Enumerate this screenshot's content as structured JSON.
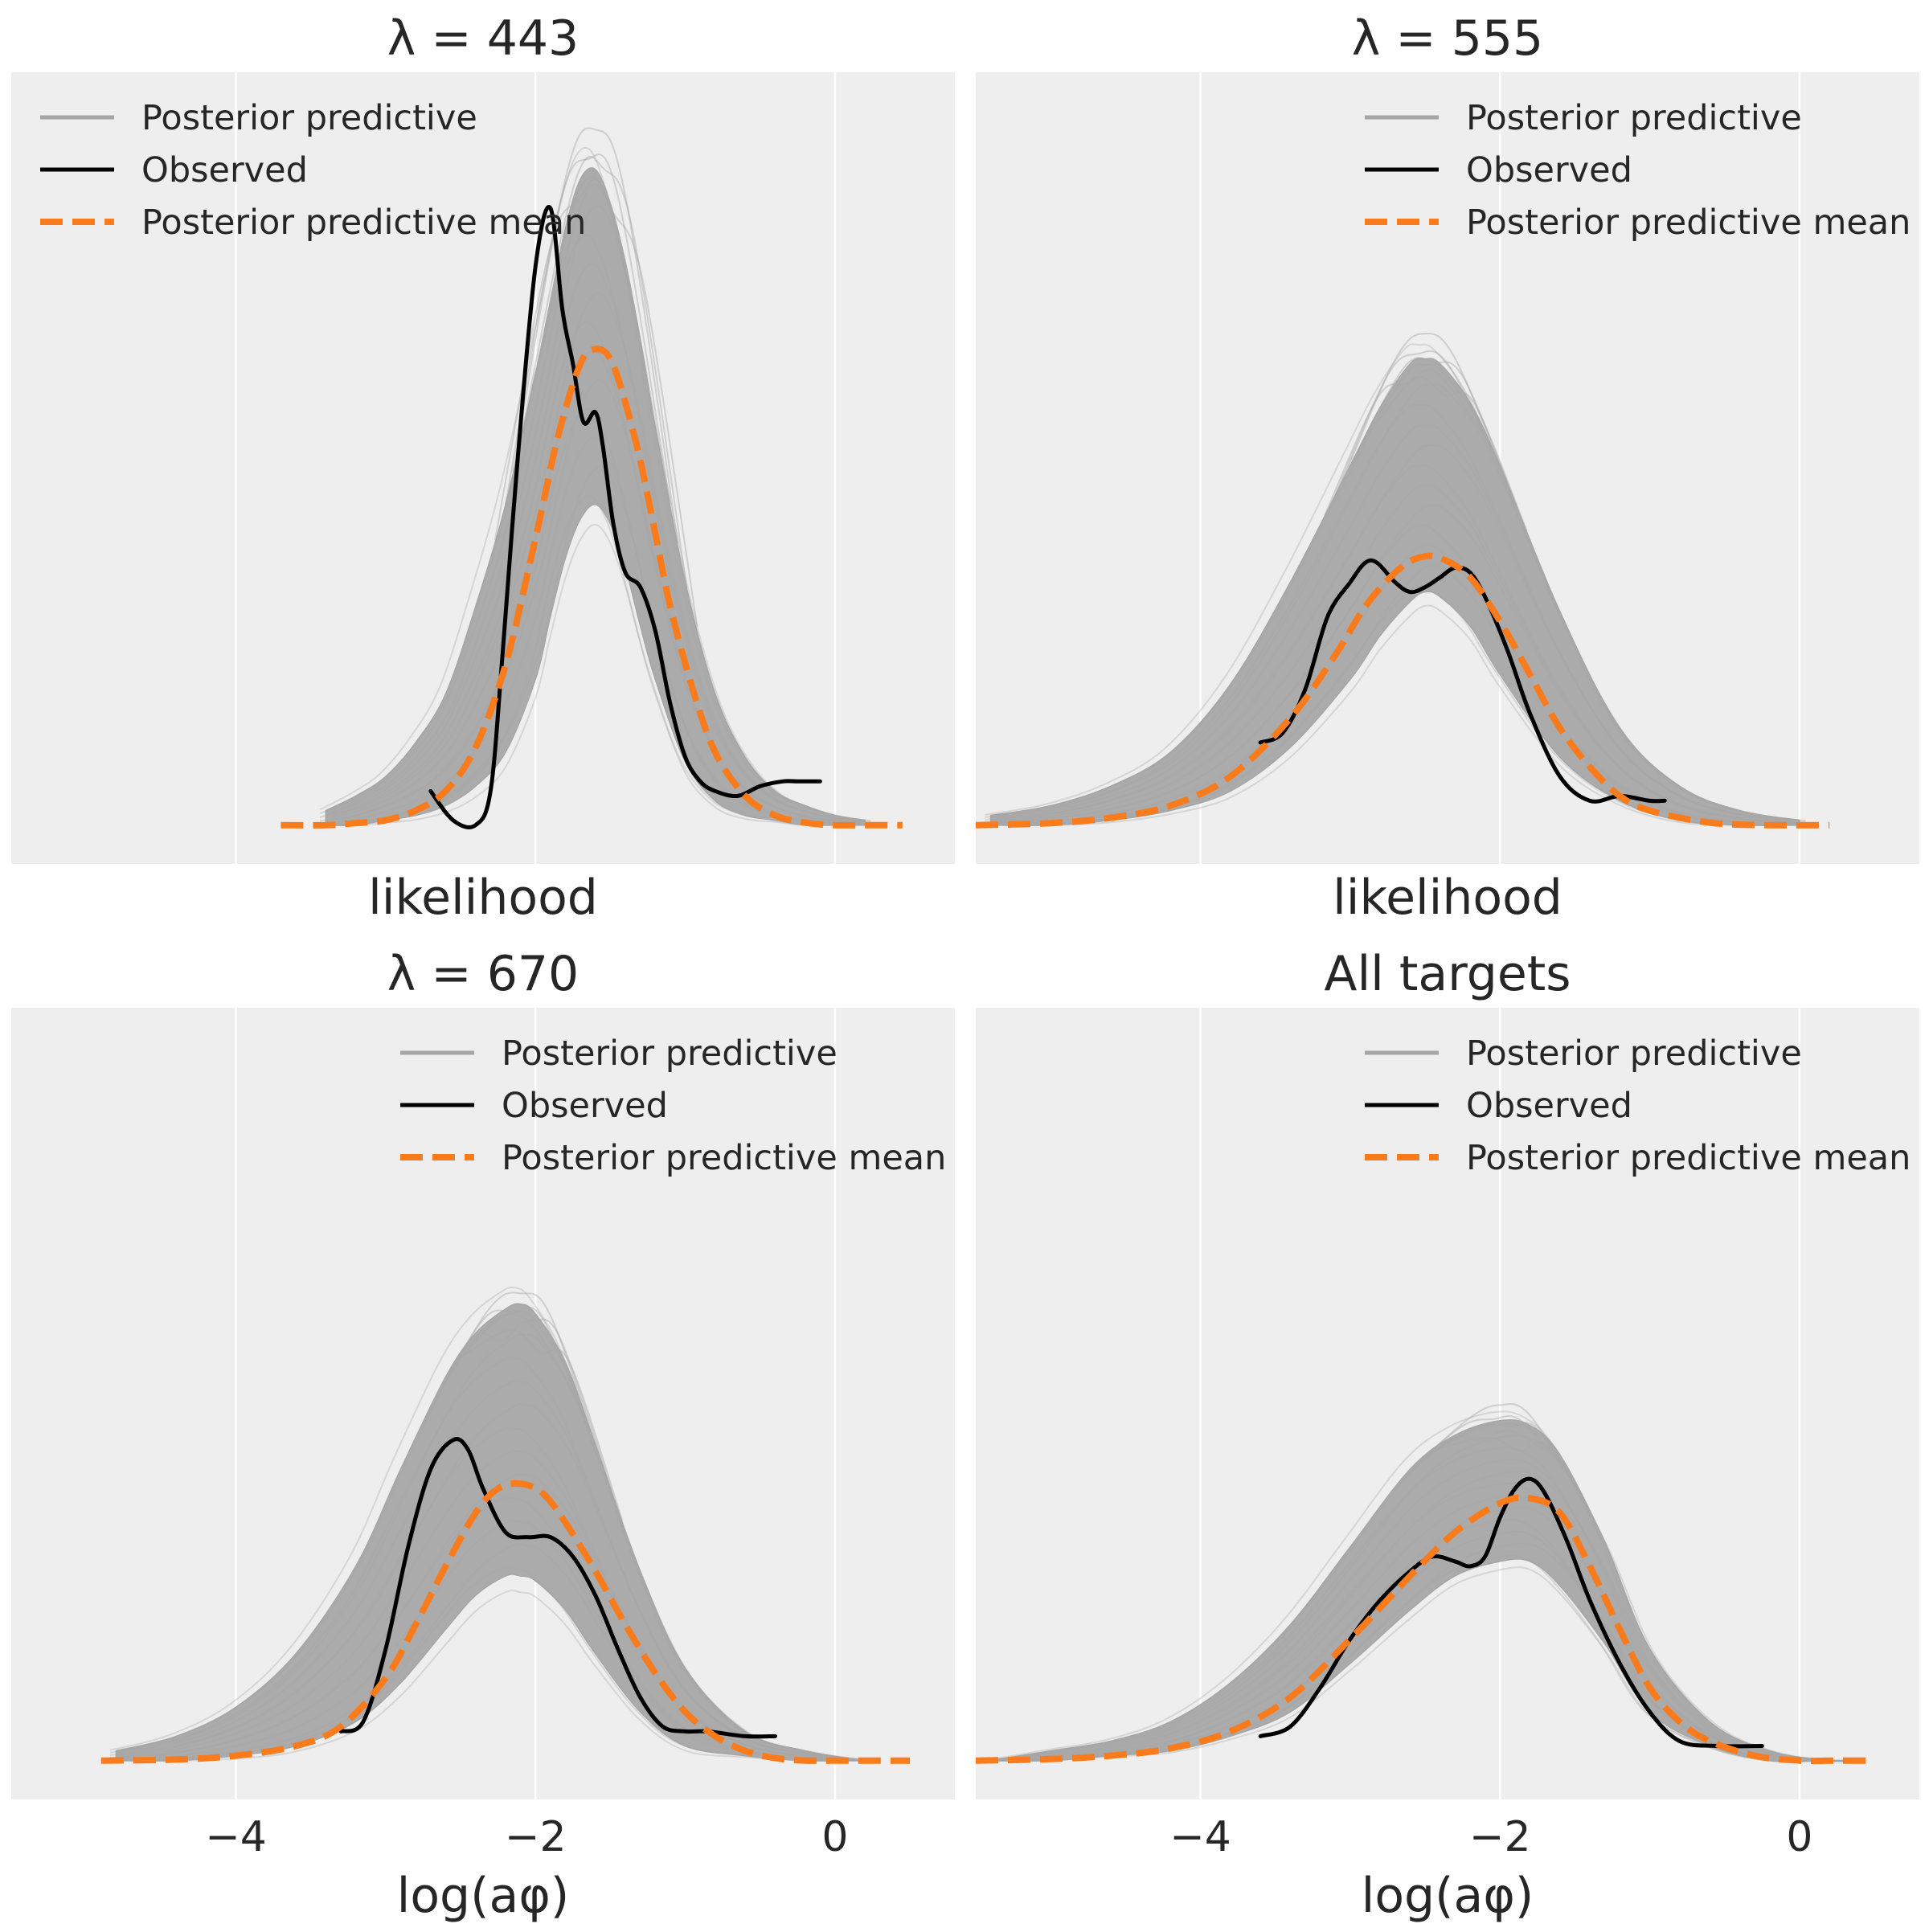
{
  "figure": {
    "background": "#ffffff",
    "panel_background": "#eeeeee",
    "grid_color": "#ffffff",
    "colors": {
      "posterior_predictive": "#a6a6a6",
      "observed": "#000000",
      "posterior_predictive_mean": "#f97b1b"
    }
  },
  "chart_data": [
    {
      "type": "line",
      "title": "λ = 443",
      "xlabel": "likelihood",
      "xlim": [
        -5.5,
        0.8
      ],
      "ylim": [
        -0.08,
        1.55
      ],
      "xticks": [
        -4,
        -2,
        0
      ],
      "xtick_labels": [],
      "grid": true,
      "legend": {
        "placement": "top-left",
        "entries": [
          "Posterior predictive",
          "Observed",
          "Posterior predictive mean"
        ]
      },
      "series": [
        {
          "name": "Posterior predictive",
          "style": "band",
          "x": [
            -3.4,
            -3.2,
            -3.0,
            -2.8,
            -2.6,
            -2.4,
            -2.2,
            -2.0,
            -1.9,
            -1.8,
            -1.7,
            -1.6,
            -1.5,
            -1.4,
            -1.3,
            -1.2,
            -1.0,
            -0.8,
            -0.6,
            -0.4,
            -0.2,
            0.0,
            0.2
          ],
          "upper": [
            0.03,
            0.06,
            0.1,
            0.17,
            0.27,
            0.45,
            0.66,
            0.93,
            1.08,
            1.23,
            1.33,
            1.35,
            1.28,
            1.16,
            1.0,
            0.82,
            0.5,
            0.27,
            0.14,
            0.07,
            0.04,
            0.02,
            0.01
          ],
          "lower": [
            0.0,
            0.0,
            0.01,
            0.02,
            0.04,
            0.08,
            0.15,
            0.3,
            0.43,
            0.55,
            0.63,
            0.66,
            0.62,
            0.53,
            0.41,
            0.3,
            0.13,
            0.05,
            0.02,
            0.01,
            0.0,
            0.0,
            0.0
          ],
          "peak": 1.44
        },
        {
          "name": "Observed",
          "style": "solid",
          "x": [
            -2.7,
            -2.55,
            -2.4,
            -2.3,
            -2.22,
            -2.12,
            -2.0,
            -1.9,
            -1.82,
            -1.75,
            -1.68,
            -1.6,
            -1.55,
            -1.48,
            -1.4,
            -1.3,
            -1.2,
            -1.1,
            -1.0,
            -0.9,
            -0.8,
            -0.65,
            -0.5,
            -0.35,
            -0.25,
            -0.1
          ],
          "y": [
            0.07,
            0.01,
            0.0,
            0.07,
            0.35,
            0.75,
            1.15,
            1.27,
            1.06,
            0.95,
            0.83,
            0.85,
            0.78,
            0.62,
            0.52,
            0.49,
            0.4,
            0.25,
            0.14,
            0.09,
            0.07,
            0.06,
            0.08,
            0.09,
            0.09,
            0.09
          ]
        },
        {
          "name": "Posterior predictive mean",
          "style": "dashed",
          "x": [
            -3.7,
            -3.4,
            -3.2,
            -3.0,
            -2.8,
            -2.6,
            -2.4,
            -2.2,
            -2.0,
            -1.85,
            -1.7,
            -1.6,
            -1.5,
            -1.4,
            -1.3,
            -1.2,
            -1.1,
            -0.95,
            -0.8,
            -0.6,
            -0.4,
            -0.2,
            0.0,
            0.2,
            0.45
          ],
          "y": [
            0.0,
            0.0,
            0.004,
            0.01,
            0.03,
            0.07,
            0.16,
            0.33,
            0.59,
            0.8,
            0.95,
            0.98,
            0.96,
            0.87,
            0.75,
            0.6,
            0.45,
            0.28,
            0.15,
            0.06,
            0.02,
            0.005,
            0.0,
            0.0,
            0.0
          ]
        }
      ]
    },
    {
      "type": "line",
      "title": "λ = 555",
      "xlabel": "likelihood",
      "xlim": [
        -5.5,
        0.8
      ],
      "ylim": [
        -0.08,
        1.55
      ],
      "xticks": [
        -4,
        -2,
        0
      ],
      "xtick_labels": [],
      "grid": true,
      "legend": {
        "placement": "top-right",
        "entries": [
          "Posterior predictive",
          "Observed",
          "Posterior predictive mean"
        ]
      },
      "series": [
        {
          "name": "Posterior predictive",
          "style": "band",
          "x": [
            -5.4,
            -5.0,
            -4.6,
            -4.2,
            -3.8,
            -3.4,
            -3.0,
            -2.8,
            -2.6,
            -2.5,
            -2.4,
            -2.2,
            -2.0,
            -1.6,
            -1.2,
            -0.8,
            -0.4,
            0.0
          ],
          "upper": [
            0.02,
            0.04,
            0.08,
            0.15,
            0.29,
            0.5,
            0.74,
            0.86,
            0.95,
            0.96,
            0.95,
            0.87,
            0.74,
            0.44,
            0.2,
            0.08,
            0.03,
            0.01
          ],
          "lower": [
            0.0,
            0.0,
            0.01,
            0.03,
            0.07,
            0.16,
            0.3,
            0.39,
            0.46,
            0.48,
            0.47,
            0.41,
            0.31,
            0.14,
            0.05,
            0.01,
            0.0,
            0.0
          ],
          "peak": 1.02
        },
        {
          "name": "Observed",
          "style": "solid",
          "x": [
            -3.6,
            -3.45,
            -3.3,
            -3.15,
            -3.0,
            -2.9,
            -2.82,
            -2.7,
            -2.6,
            -2.5,
            -2.4,
            -2.3,
            -2.2,
            -2.1,
            -1.95,
            -1.8,
            -1.6,
            -1.4,
            -1.2,
            -1.0,
            -0.9
          ],
          "y": [
            0.17,
            0.19,
            0.28,
            0.43,
            0.5,
            0.54,
            0.54,
            0.5,
            0.48,
            0.49,
            0.51,
            0.53,
            0.52,
            0.47,
            0.36,
            0.23,
            0.1,
            0.05,
            0.06,
            0.05,
            0.05
          ]
        },
        {
          "name": "Posterior predictive mean",
          "style": "dashed",
          "x": [
            -5.5,
            -5.0,
            -4.6,
            -4.2,
            -3.8,
            -3.4,
            -3.1,
            -2.9,
            -2.7,
            -2.55,
            -2.4,
            -2.2,
            -2.0,
            -1.8,
            -1.6,
            -1.4,
            -1.2,
            -1.0,
            -0.6,
            -0.2,
            0.2
          ],
          "y": [
            0.0,
            0.004,
            0.015,
            0.04,
            0.1,
            0.22,
            0.35,
            0.45,
            0.52,
            0.55,
            0.55,
            0.51,
            0.42,
            0.31,
            0.2,
            0.12,
            0.06,
            0.03,
            0.005,
            0.0,
            0.0
          ]
        }
      ]
    },
    {
      "type": "line",
      "title": "λ = 670",
      "xlabel": "log(aφ)",
      "xlim": [
        -5.5,
        0.8
      ],
      "ylim": [
        -0.08,
        1.55
      ],
      "xticks": [
        -4,
        -2,
        0
      ],
      "xtick_labels": [
        "−4",
        "−2",
        "0"
      ],
      "grid": true,
      "legend": {
        "placement": "top-right",
        "entries": [
          "Posterior predictive",
          "Observed",
          "Posterior predictive mean"
        ]
      },
      "series": [
        {
          "name": "Posterior predictive",
          "style": "band",
          "x": [
            -4.8,
            -4.4,
            -4.0,
            -3.6,
            -3.2,
            -2.9,
            -2.6,
            -2.4,
            -2.2,
            -2.1,
            -2.0,
            -1.8,
            -1.6,
            -1.3,
            -1.0,
            -0.6,
            -0.2,
            0.2
          ],
          "upper": [
            0.02,
            0.05,
            0.11,
            0.22,
            0.4,
            0.6,
            0.79,
            0.88,
            0.93,
            0.94,
            0.92,
            0.82,
            0.65,
            0.39,
            0.19,
            0.06,
            0.02,
            0.0
          ],
          "lower": [
            0.0,
            0.0,
            0.01,
            0.03,
            0.08,
            0.16,
            0.27,
            0.34,
            0.38,
            0.38,
            0.37,
            0.31,
            0.22,
            0.1,
            0.03,
            0.01,
            0.0,
            0.0
          ],
          "peak": 0.97
        },
        {
          "name": "Observed",
          "style": "solid",
          "x": [
            -3.3,
            -3.15,
            -3.0,
            -2.85,
            -2.7,
            -2.55,
            -2.45,
            -2.35,
            -2.2,
            -2.05,
            -1.9,
            -1.75,
            -1.6,
            -1.45,
            -1.3,
            -1.15,
            -1.0,
            -0.85,
            -0.6,
            -0.4
          ],
          "y": [
            0.06,
            0.08,
            0.23,
            0.44,
            0.6,
            0.66,
            0.64,
            0.56,
            0.47,
            0.46,
            0.46,
            0.42,
            0.34,
            0.23,
            0.13,
            0.07,
            0.06,
            0.06,
            0.05,
            0.05
          ]
        },
        {
          "name": "Posterior predictive mean",
          "style": "dashed",
          "x": [
            -4.9,
            -4.4,
            -4.0,
            -3.6,
            -3.3,
            -3.0,
            -2.8,
            -2.6,
            -2.4,
            -2.25,
            -2.1,
            -1.95,
            -1.8,
            -1.6,
            -1.4,
            -1.2,
            -1.0,
            -0.8,
            -0.6,
            -0.4,
            -0.2,
            0.0,
            0.2,
            0.5
          ],
          "y": [
            0.0,
            0.002,
            0.01,
            0.03,
            0.07,
            0.17,
            0.28,
            0.4,
            0.51,
            0.56,
            0.57,
            0.55,
            0.49,
            0.39,
            0.28,
            0.18,
            0.1,
            0.05,
            0.02,
            0.005,
            0.0,
            0.0,
            0.0,
            0.0
          ]
        }
      ]
    },
    {
      "type": "line",
      "title": "All targets",
      "xlabel": "log(aφ)",
      "xlim": [
        -5.5,
        0.8
      ],
      "ylim": [
        -0.08,
        1.55
      ],
      "xticks": [
        -4,
        -2,
        0
      ],
      "xtick_labels": [
        "−4",
        "−2",
        "0"
      ],
      "grid": true,
      "legend": {
        "placement": "top-right",
        "entries": [
          "Posterior predictive",
          "Observed",
          "Posterior predictive mean"
        ]
      },
      "series": [
        {
          "name": "Posterior predictive",
          "style": "band",
          "x": [
            -5.4,
            -5.0,
            -4.6,
            -4.2,
            -3.8,
            -3.4,
            -3.0,
            -2.6,
            -2.3,
            -2.0,
            -1.8,
            -1.6,
            -1.3,
            -1.0,
            -0.6,
            -0.2,
            0.2,
            0.4
          ],
          "upper": [
            0.0,
            0.02,
            0.04,
            0.08,
            0.16,
            0.28,
            0.44,
            0.6,
            0.67,
            0.7,
            0.69,
            0.63,
            0.45,
            0.23,
            0.08,
            0.02,
            0.0,
            0.0
          ],
          "lower": [
            0.0,
            0.0,
            0.01,
            0.02,
            0.05,
            0.1,
            0.2,
            0.31,
            0.38,
            0.41,
            0.41,
            0.36,
            0.24,
            0.1,
            0.03,
            0.0,
            0.0,
            0.0
          ],
          "peak": 0.74
        },
        {
          "name": "Observed",
          "style": "solid",
          "x": [
            -3.6,
            -3.4,
            -3.2,
            -3.0,
            -2.8,
            -2.6,
            -2.45,
            -2.3,
            -2.2,
            -2.1,
            -2.0,
            -1.9,
            -1.8,
            -1.7,
            -1.55,
            -1.4,
            -1.2,
            -1.0,
            -0.8,
            -0.55,
            -0.25
          ],
          "y": [
            0.05,
            0.07,
            0.15,
            0.25,
            0.33,
            0.39,
            0.42,
            0.41,
            0.4,
            0.42,
            0.5,
            0.56,
            0.58,
            0.55,
            0.45,
            0.33,
            0.2,
            0.1,
            0.04,
            0.03,
            0.03
          ]
        },
        {
          "name": "Posterior predictive mean",
          "style": "dashed",
          "x": [
            -5.5,
            -5.0,
            -4.6,
            -4.2,
            -3.8,
            -3.4,
            -3.0,
            -2.6,
            -2.3,
            -2.0,
            -1.8,
            -1.6,
            -1.4,
            -1.2,
            -1.0,
            -0.8,
            -0.6,
            -0.3,
            0.0,
            0.25,
            0.5
          ],
          "y": [
            0.0,
            0.003,
            0.01,
            0.025,
            0.06,
            0.13,
            0.25,
            0.38,
            0.47,
            0.53,
            0.54,
            0.51,
            0.4,
            0.27,
            0.15,
            0.08,
            0.04,
            0.01,
            0.0,
            0.0,
            0.0
          ]
        }
      ]
    }
  ]
}
